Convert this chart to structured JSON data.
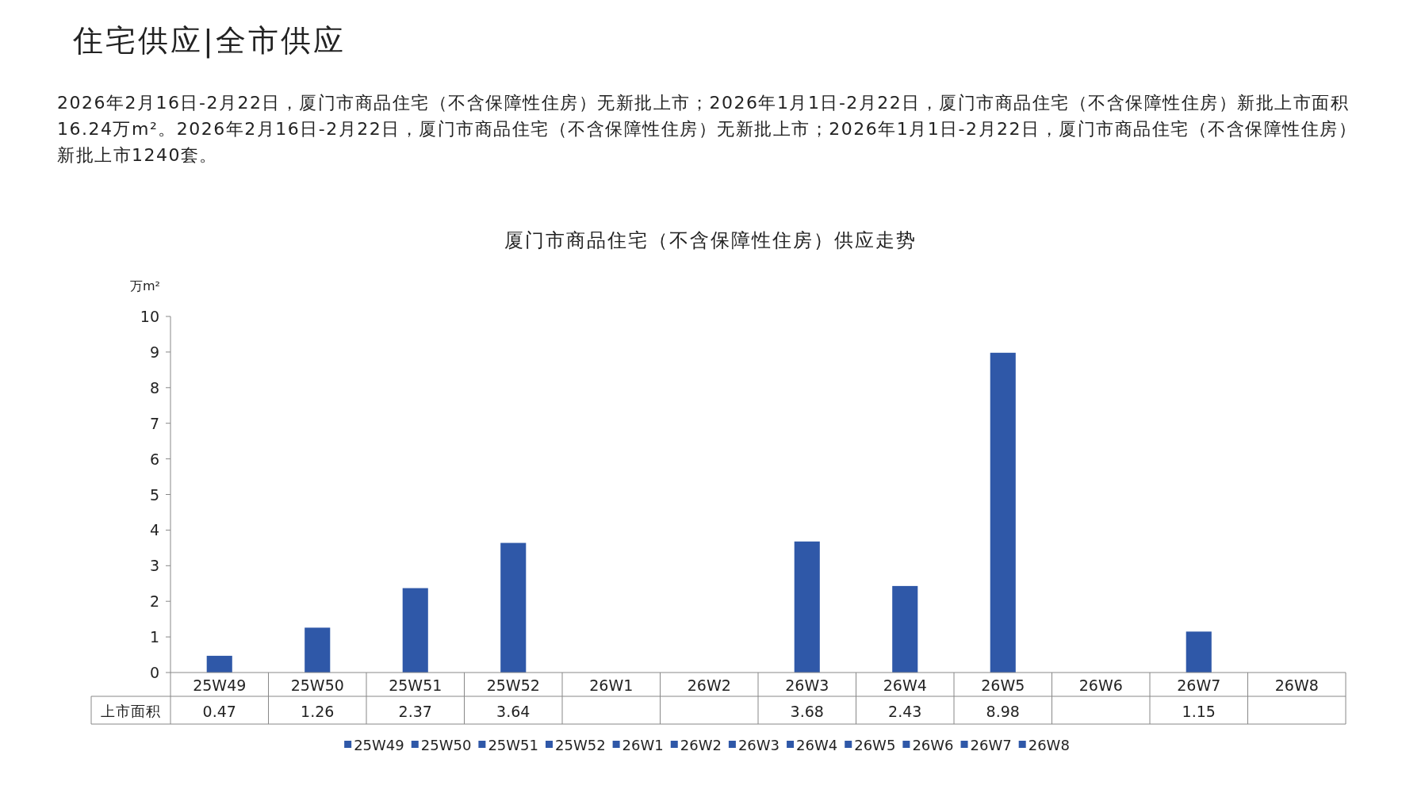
{
  "chart_data": {
    "type": "bar",
    "title": "厦门市商品住宅（不含保障性住房）供应走势",
    "annotations": [
      "住宅供应|全市供应",
      "2026年2月16日-2月22日，厦门市商品住宅（不含保障性住房）无新批上市；2026年1月1日-2月22日，厦门市商品住宅（不含保障性住房）新批上市面积16.24万m²。2026年2月16日-2月22日，厦门市商品住宅（不含保障性住房）无新批上市；2026年1月1日-2月22日，厦门市商品住宅（不含保障性住房）新批上市1240套。"
    ],
    "ylabel": "万m²",
    "categories": [
      "25W49",
      "25W50",
      "25W51",
      "25W52",
      "26W1",
      "26W2",
      "26W3",
      "26W4",
      "26W5",
      "26W6",
      "26W7",
      "26W8"
    ],
    "series": [
      {
        "name": "上市面积",
        "colors": [
          "#2f58a8",
          "#2f58a8",
          "#2f58a8",
          "#2f58a8",
          "#2f58a8",
          "#2f58a8",
          "#2f58a8",
          "#2f58a8",
          "#2f58a8",
          "#2f58a8",
          "#2f58a8",
          "#2f58a8"
        ],
        "values": [
          0.47,
          1.26,
          2.37,
          3.64,
          null,
          null,
          3.68,
          2.43,
          8.98,
          null,
          1.15,
          null
        ]
      }
    ],
    "ylim": [
      0,
      10
    ],
    "yticks": [
      0,
      1,
      2,
      3,
      4,
      5,
      6,
      7,
      8,
      9,
      10
    ],
    "data_labels": true,
    "grid": false,
    "legend": "bottom"
  }
}
